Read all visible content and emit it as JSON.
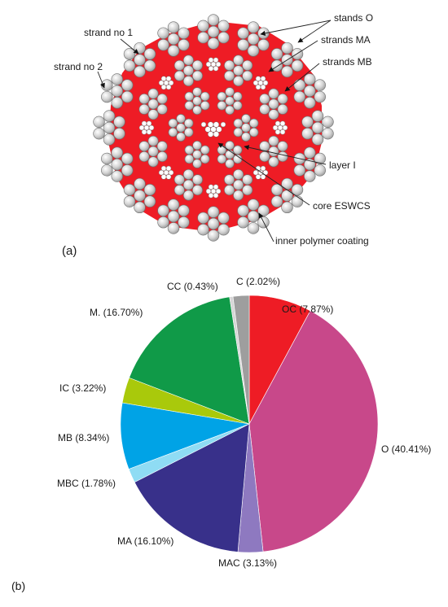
{
  "panel_a": {
    "label": "(a)",
    "callouts": {
      "strand_no_1": "strand no 1",
      "strand_no_2": "strand no 2",
      "stands_o": "stands O",
      "strands_ma": "strands MA",
      "strands_mb": "strands MB",
      "layer_i": "layer I",
      "core_eswcs": "core ESWCS",
      "inner_polymer_coating": "inner polymer coating"
    },
    "colors": {
      "polymer": "#ee1c25",
      "wire": "#d2d2d2",
      "wire_edge": "#6e6e6e"
    }
  },
  "panel_b": {
    "label": "(b)"
  },
  "chart_data": {
    "type": "pie",
    "title": "",
    "start_angle_deg": 0,
    "direction": "clockwise",
    "slices": [
      {
        "label": "OC (7.87%)",
        "name": "OC",
        "value": 7.87,
        "color": "#ee1c25"
      },
      {
        "label": "O (40.41%)",
        "name": "O",
        "value": 40.41,
        "color": "#c8488a"
      },
      {
        "label": "MAC (3.13%)",
        "name": "MAC",
        "value": 3.13,
        "color": "#8e79c0"
      },
      {
        "label": "MA (16.10%)",
        "name": "MA",
        "value": 16.1,
        "color": "#38308a"
      },
      {
        "label": "MBC (1.78%)",
        "name": "MBC",
        "value": 1.78,
        "color": "#8fdcf4"
      },
      {
        "label": "MB (8.34%)",
        "name": "MB",
        "value": 8.34,
        "color": "#00a3e6"
      },
      {
        "label": "IC (3.22%)",
        "name": "IC",
        "value": 3.22,
        "color": "#a9c90b"
      },
      {
        "label": "M. (16.70%)",
        "name": "M.",
        "value": 16.7,
        "color": "#109a48"
      },
      {
        "label": "CC (0.43%)",
        "name": "CC",
        "value": 0.43,
        "color": "#d6d6d6"
      },
      {
        "label": "C (2.02%)",
        "name": "C",
        "value": 2.02,
        "color": "#9e9e9e"
      }
    ],
    "legend": "none"
  }
}
